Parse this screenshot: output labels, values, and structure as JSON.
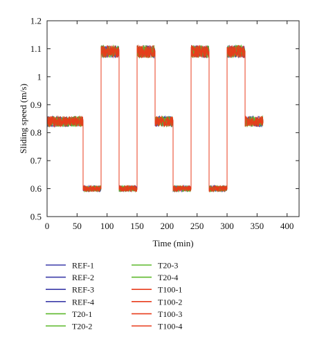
{
  "chart_data": {
    "type": "line",
    "xlabel": "Time (min)",
    "ylabel": "Sliding speed (m/s)",
    "xlim": [
      0,
      420
    ],
    "ylim": [
      0.5,
      1.2
    ],
    "xticks": [
      0,
      50,
      100,
      150,
      200,
      250,
      300,
      350,
      400
    ],
    "yticks": [
      0.5,
      0.6,
      0.7,
      0.8,
      0.9,
      1,
      1.1,
      1.2
    ],
    "ytick_labels": [
      "0.5",
      "0.6",
      "0.7",
      "0.8",
      "0.9",
      "1",
      "1.1",
      "1.2"
    ],
    "grid": false,
    "legend_position": "below the plot, two columns",
    "x": [
      0,
      60,
      60,
      90,
      90,
      120,
      120,
      150,
      150,
      180,
      180,
      210,
      210,
      240,
      240,
      270,
      270,
      300,
      300,
      330,
      330,
      360
    ],
    "series": [
      {
        "name": "REF-1",
        "color": "#3a3aa8",
        "values": [
          0.84,
          0.84,
          0.6,
          0.6,
          1.09,
          1.09,
          0.6,
          0.6,
          1.09,
          1.09,
          0.84,
          0.84,
          0.6,
          0.6,
          1.09,
          1.09,
          0.6,
          0.6,
          1.09,
          1.09,
          0.84,
          0.84
        ]
      },
      {
        "name": "REF-2",
        "color": "#3a3aa8",
        "values": [
          0.84,
          0.84,
          0.6,
          0.6,
          1.09,
          1.09,
          0.6,
          0.6,
          1.09,
          1.09,
          0.84,
          0.84,
          0.6,
          0.6,
          1.09,
          1.09,
          0.6,
          0.6,
          1.09,
          1.09,
          0.84,
          0.84
        ]
      },
      {
        "name": "REF-3",
        "color": "#3a3aa8",
        "values": [
          0.84,
          0.84,
          0.6,
          0.6,
          1.09,
          1.09,
          0.6,
          0.6,
          1.09,
          1.09,
          0.84,
          0.84,
          0.6,
          0.6,
          1.09,
          1.09,
          0.6,
          0.6,
          1.09,
          1.09,
          0.84,
          0.84
        ]
      },
      {
        "name": "REF-4",
        "color": "#3a3aa8",
        "values": [
          0.84,
          0.84,
          0.6,
          0.6,
          1.09,
          1.09,
          0.6,
          0.6,
          1.09,
          1.09,
          0.84,
          0.84,
          0.6,
          0.6,
          1.09,
          1.09,
          0.6,
          0.6,
          1.09,
          1.09,
          0.84,
          0.84
        ]
      },
      {
        "name": "T20-1",
        "color": "#5cb82a",
        "values": [
          0.84,
          0.84,
          0.6,
          0.6,
          1.09,
          1.09,
          0.6,
          0.6,
          1.09,
          1.09,
          0.84,
          0.84,
          0.6,
          0.6,
          1.09,
          1.09,
          0.6,
          0.6,
          1.09,
          1.09,
          0.84,
          0.84
        ]
      },
      {
        "name": "T20-2",
        "color": "#5cb82a",
        "values": [
          0.84,
          0.84,
          0.6,
          0.6,
          1.09,
          1.09,
          0.6,
          0.6,
          1.09,
          1.09,
          0.84,
          0.84,
          0.6,
          0.6,
          1.09,
          1.09,
          0.6,
          0.6,
          1.09,
          1.09,
          0.84,
          0.84
        ]
      },
      {
        "name": "T20-3",
        "color": "#5cb82a",
        "values": [
          0.84,
          0.84,
          0.6,
          0.6,
          1.09,
          1.09,
          0.6,
          0.6,
          1.09,
          1.09,
          0.84,
          0.84,
          0.6,
          0.6,
          1.09,
          1.09,
          0.6,
          0.6,
          1.09,
          1.09,
          0.84,
          0.84
        ]
      },
      {
        "name": "T20-4",
        "color": "#5cb82a",
        "values": [
          0.84,
          0.84,
          0.6,
          0.6,
          1.09,
          1.09,
          0.6,
          0.6,
          1.09,
          1.09,
          0.84,
          0.84,
          0.6,
          0.6,
          1.09,
          1.09,
          0.6,
          0.6,
          1.09,
          1.09,
          0.84,
          0.84
        ]
      },
      {
        "name": "T100-1",
        "color": "#e83c1c",
        "values": [
          0.84,
          0.84,
          0.6,
          0.6,
          1.09,
          1.09,
          0.6,
          0.6,
          1.09,
          1.09,
          0.84,
          0.84,
          0.6,
          0.6,
          1.09,
          1.09,
          0.6,
          0.6,
          1.09,
          1.09,
          0.84,
          0.84
        ]
      },
      {
        "name": "T100-2",
        "color": "#e83c1c",
        "values": [
          0.84,
          0.84,
          0.6,
          0.6,
          1.09,
          1.09,
          0.6,
          0.6,
          1.09,
          1.09,
          0.84,
          0.84,
          0.6,
          0.6,
          1.09,
          1.09,
          0.6,
          0.6,
          1.09,
          1.09,
          0.84,
          0.84
        ]
      },
      {
        "name": "T100-3",
        "color": "#e83c1c",
        "values": [
          0.84,
          0.84,
          0.6,
          0.6,
          1.09,
          1.09,
          0.6,
          0.6,
          1.09,
          1.09,
          0.84,
          0.84,
          0.6,
          0.6,
          1.09,
          1.09,
          0.6,
          0.6,
          1.09,
          1.09,
          0.84,
          0.84
        ]
      },
      {
        "name": "T100-4",
        "color": "#e83c1c",
        "values": [
          0.84,
          0.84,
          0.6,
          0.6,
          1.09,
          1.09,
          0.6,
          0.6,
          1.09,
          1.09,
          0.84,
          0.84,
          0.6,
          0.6,
          1.09,
          1.09,
          0.6,
          0.6,
          1.09,
          1.09,
          0.84,
          0.84
        ]
      }
    ]
  }
}
